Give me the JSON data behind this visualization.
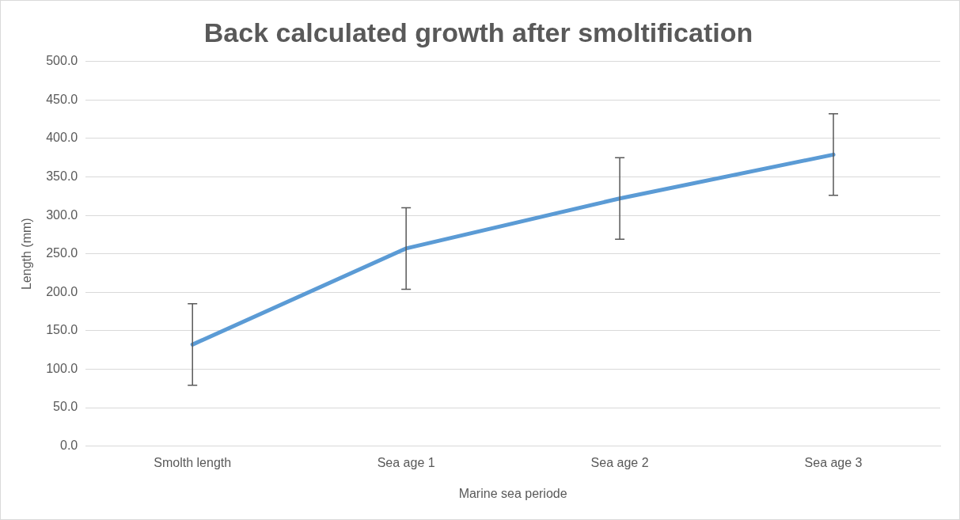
{
  "chart_data": {
    "type": "line",
    "title": "Back calculated growth after smoltification",
    "xlabel": "Marine sea periode",
    "ylabel": "Length (mm)",
    "categories": [
      "Smolth length",
      "Sea age 1",
      "Sea age 2",
      "Sea age 3"
    ],
    "series": [
      {
        "color": "#5b9bd5",
        "values": [
          132,
          257,
          322,
          379
        ],
        "errors": [
          53,
          53,
          53,
          53
        ]
      }
    ],
    "ylim": [
      0,
      500
    ],
    "yticks": [
      {
        "value": 0,
        "label": "0.0"
      },
      {
        "value": 50,
        "label": "50.0"
      },
      {
        "value": 100,
        "label": "100.0"
      },
      {
        "value": 150,
        "label": "150.0"
      },
      {
        "value": 200,
        "label": "200.0"
      },
      {
        "value": 250,
        "label": "250.0"
      },
      {
        "value": 300,
        "label": "300.0"
      },
      {
        "value": 350,
        "label": "350.0"
      },
      {
        "value": 400,
        "label": "400.0"
      },
      {
        "value": 450,
        "label": "450.0"
      },
      {
        "value": 500,
        "label": "500.0"
      }
    ],
    "grid": "y",
    "legend": false,
    "marker": "none",
    "line_style": "solid"
  }
}
